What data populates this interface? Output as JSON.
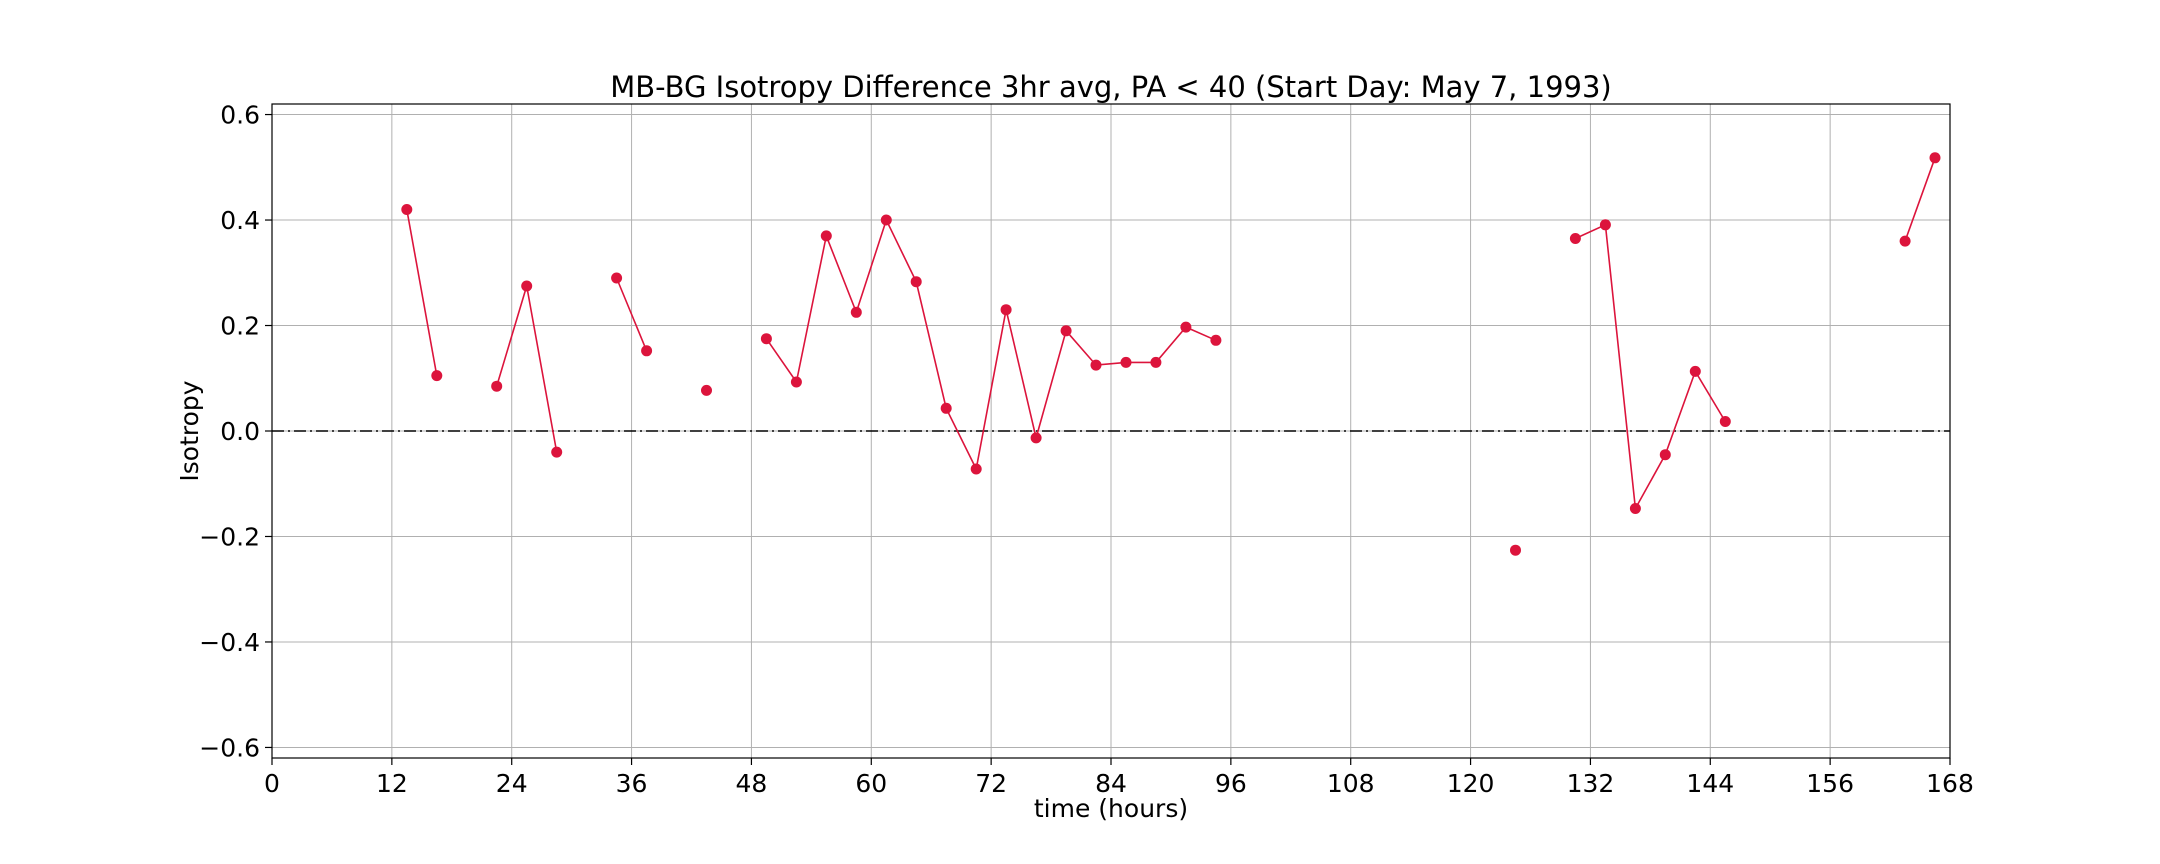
{
  "chart_data": {
    "type": "line",
    "title": "MB-BG Isotropy Difference 3hr avg, PA < 40 (Start Day: May 7, 1993)",
    "xlabel": "time (hours)",
    "ylabel": "Isotropy",
    "xlim": [
      0,
      168
    ],
    "ylim": [
      -0.62,
      0.62
    ],
    "xticks": [
      0,
      12,
      24,
      36,
      48,
      60,
      72,
      84,
      96,
      108,
      120,
      132,
      144,
      156,
      168
    ],
    "yticks": [
      -0.6,
      -0.4,
      -0.2,
      0.0,
      0.2,
      0.4,
      0.6
    ],
    "ytick_labels": [
      "−0.6",
      "−0.4",
      "−0.2",
      "0.0",
      "0.2",
      "0.4",
      "0.6"
    ],
    "grid": true,
    "reference_line": {
      "y": 0.0,
      "style": "dash-dot",
      "color": "#000000"
    },
    "series": [
      {
        "color": "#dc143c",
        "segments": [
          [
            [
              13.5,
              0.42
            ],
            [
              16.5,
              0.105
            ]
          ],
          [
            [
              22.5,
              0.085
            ],
            [
              25.5,
              0.275
            ],
            [
              28.5,
              -0.04
            ]
          ],
          [
            [
              34.5,
              0.29
            ],
            [
              37.5,
              0.152
            ]
          ],
          [
            [
              43.5,
              0.077
            ]
          ],
          [
            [
              49.5,
              0.175
            ],
            [
              52.5,
              0.093
            ],
            [
              55.5,
              0.37
            ],
            [
              58.5,
              0.225
            ],
            [
              61.5,
              0.4
            ],
            [
              64.5,
              0.283
            ],
            [
              67.5,
              0.043
            ],
            [
              70.5,
              -0.072
            ],
            [
              73.5,
              0.23
            ],
            [
              76.5,
              -0.013
            ],
            [
              79.5,
              0.19
            ],
            [
              82.5,
              0.125
            ],
            [
              85.5,
              0.13
            ],
            [
              88.5,
              0.13
            ],
            [
              91.5,
              0.197
            ],
            [
              94.5,
              0.172
            ]
          ],
          [
            [
              124.5,
              -0.226
            ]
          ],
          [
            [
              130.5,
              0.365
            ],
            [
              133.5,
              0.391
            ],
            [
              136.5,
              -0.147
            ],
            [
              139.5,
              -0.045
            ],
            [
              142.5,
              0.113
            ],
            [
              145.5,
              0.018
            ]
          ],
          [
            [
              163.5,
              0.36
            ],
            [
              166.5,
              0.518
            ]
          ]
        ]
      }
    ]
  }
}
